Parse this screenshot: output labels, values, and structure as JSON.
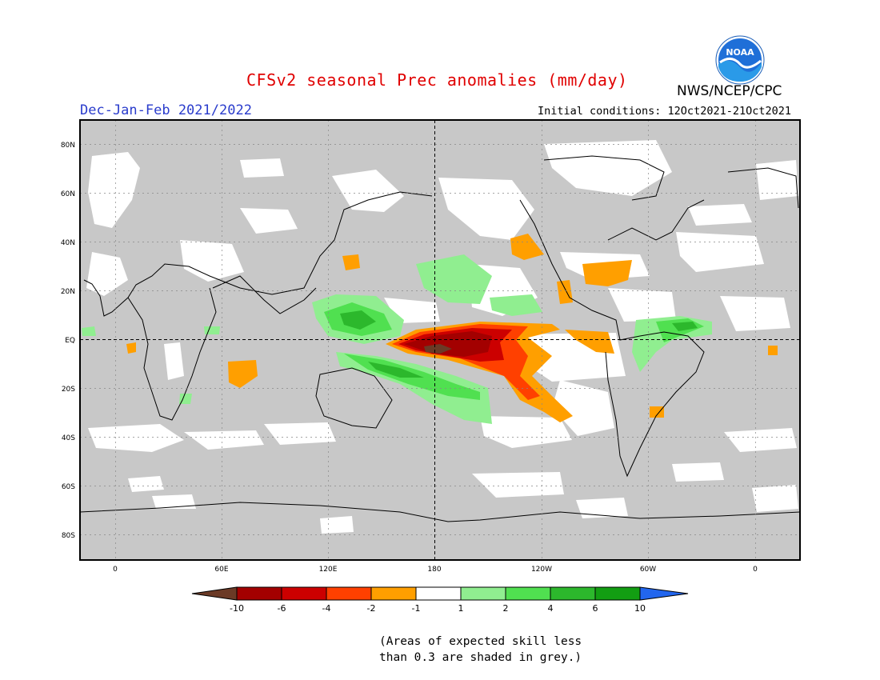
{
  "header": {
    "title": "CFSv2 seasonal Prec anomalies (mm/day)",
    "org": "NWS/NCEP/CPC",
    "season": "Dec-Jan-Feb 2021/2022",
    "initial_conditions": "Initial conditions: 12Oct2021-21Oct2021",
    "logo_text": "NOAA"
  },
  "map": {
    "lat_labels": [
      "80N",
      "60N",
      "40N",
      "20N",
      "EQ",
      "20S",
      "40S",
      "60S",
      "80S"
    ],
    "lon_labels": [
      "0",
      "60E",
      "120E",
      "180",
      "120W",
      "60W",
      "0"
    ],
    "masked_color": "#c8c8c8"
  },
  "colorbar": {
    "labels": [
      "-10",
      "-6",
      "-4",
      "-2",
      "-1",
      "1",
      "2",
      "4",
      "6",
      "10"
    ],
    "colors": [
      "#6b3a26",
      "#a30000",
      "#cc0000",
      "#ff4000",
      "#ff9f00",
      "#ffffff",
      "#90ee90",
      "#50e050",
      "#2cb82c",
      "#129e12",
      "#2266ee"
    ]
  },
  "note": {
    "line1": "(Areas of expected skill less",
    "line2": "than 0.3 are shaded in grey.)"
  }
}
